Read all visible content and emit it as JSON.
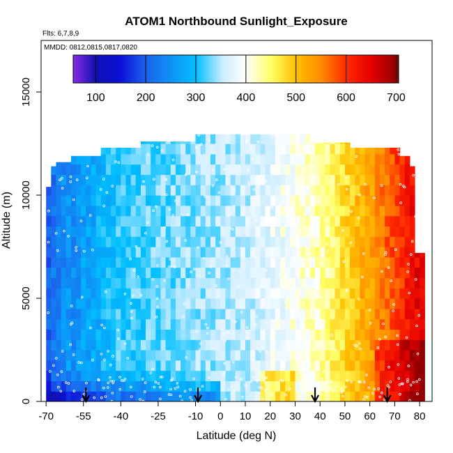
{
  "chart_data": {
    "type": "heatmap",
    "title": "ATOM1 Northbound Sunlight_Exposure",
    "flights_note": "Flts: 6,7,8,9",
    "dates_note": "MMDD: 0812,0815,0817,0820",
    "xlabel": "Latitude (deg N)",
    "ylabel": "Altitude (m)",
    "xlim": [
      -72,
      85
    ],
    "ylim": [
      0,
      17500
    ],
    "x_ticks": [
      -70,
      -55,
      -40,
      -25,
      -10,
      0,
      10,
      20,
      30,
      40,
      50,
      60,
      70,
      80
    ],
    "x_tick_labels": [
      "-70",
      "-55",
      "-40",
      "-25",
      "-10",
      "0",
      "10",
      "20",
      "30",
      "40",
      "50",
      "60",
      "70",
      "80"
    ],
    "y_ticks": [
      0,
      5000,
      10000,
      15000
    ],
    "y_tick_labels": [
      "0",
      "5000",
      "10000",
      "15000"
    ],
    "colorbar": {
      "range": [
        55,
        705
      ],
      "ticks": [
        100,
        200,
        300,
        400,
        500,
        600,
        700
      ],
      "tick_labels": [
        "100",
        "200",
        "300",
        "400",
        "500",
        "600",
        "700"
      ],
      "stops": [
        {
          "value": 55,
          "color": "#8a2be2"
        },
        {
          "value": 100,
          "color": "#1010b0"
        },
        {
          "value": 150,
          "color": "#0a10d8"
        },
        {
          "value": 200,
          "color": "#1c64ee"
        },
        {
          "value": 300,
          "color": "#00bfff"
        },
        {
          "value": 355,
          "color": "#cfeeff"
        },
        {
          "value": 400,
          "color": "#ffffff"
        },
        {
          "value": 450,
          "color": "#ffff66"
        },
        {
          "value": 500,
          "color": "#ffc000"
        },
        {
          "value": 550,
          "color": "#ff8c00"
        },
        {
          "value": 600,
          "color": "#ff2a00"
        },
        {
          "value": 650,
          "color": "#e60000"
        },
        {
          "value": 705,
          "color": "#8b0000"
        }
      ]
    },
    "arrows_at_latitude": [
      -54,
      -9,
      38,
      67
    ]
  }
}
